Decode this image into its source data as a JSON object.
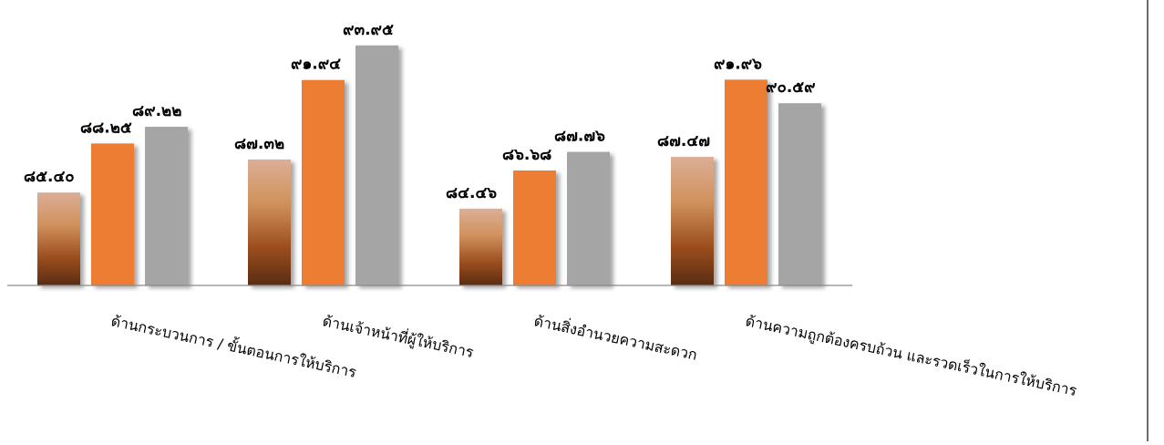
{
  "chart_data": {
    "type": "bar",
    "title": "",
    "xlabel": "",
    "ylabel": "",
    "ylim": [
      80,
      95
    ],
    "categories": [
      "ด้านกระบวนการ / ขั้นตอนการให้บริการ",
      "ด้านเจ้าหน้าที่ผู้ให้บริการ",
      "ด้านสิ่งอำนวยความสะดวก",
      "ด้านความถูกต้องครบถ้วน และรวดเร็วในการให้บริการ"
    ],
    "series": [
      {
        "values": [
          85.4,
          87.32,
          84.46,
          87.47
        ],
        "labels": [
          "๘๕.๔๐",
          "๘๗.๓๒",
          "๘๔.๔๖",
          "๘๗.๔๗"
        ],
        "color": "#c07a4a"
      },
      {
        "values": [
          88.25,
          91.94,
          86.68,
          91.96
        ],
        "labels": [
          "๘๘.๒๕",
          "๙๑.๙๔",
          "๘๖.๖๘",
          "๙๑.๙๖"
        ],
        "color": "#ed7d31"
      },
      {
        "values": [
          89.22,
          93.95,
          87.76,
          90.59
        ],
        "labels": [
          "๘๙.๒๒",
          "๙๓.๙๕",
          "๘๗.๗๖",
          "๙๐.๕๙"
        ],
        "color": "#a5a5a5"
      }
    ],
    "grid": false,
    "legend": "none"
  }
}
